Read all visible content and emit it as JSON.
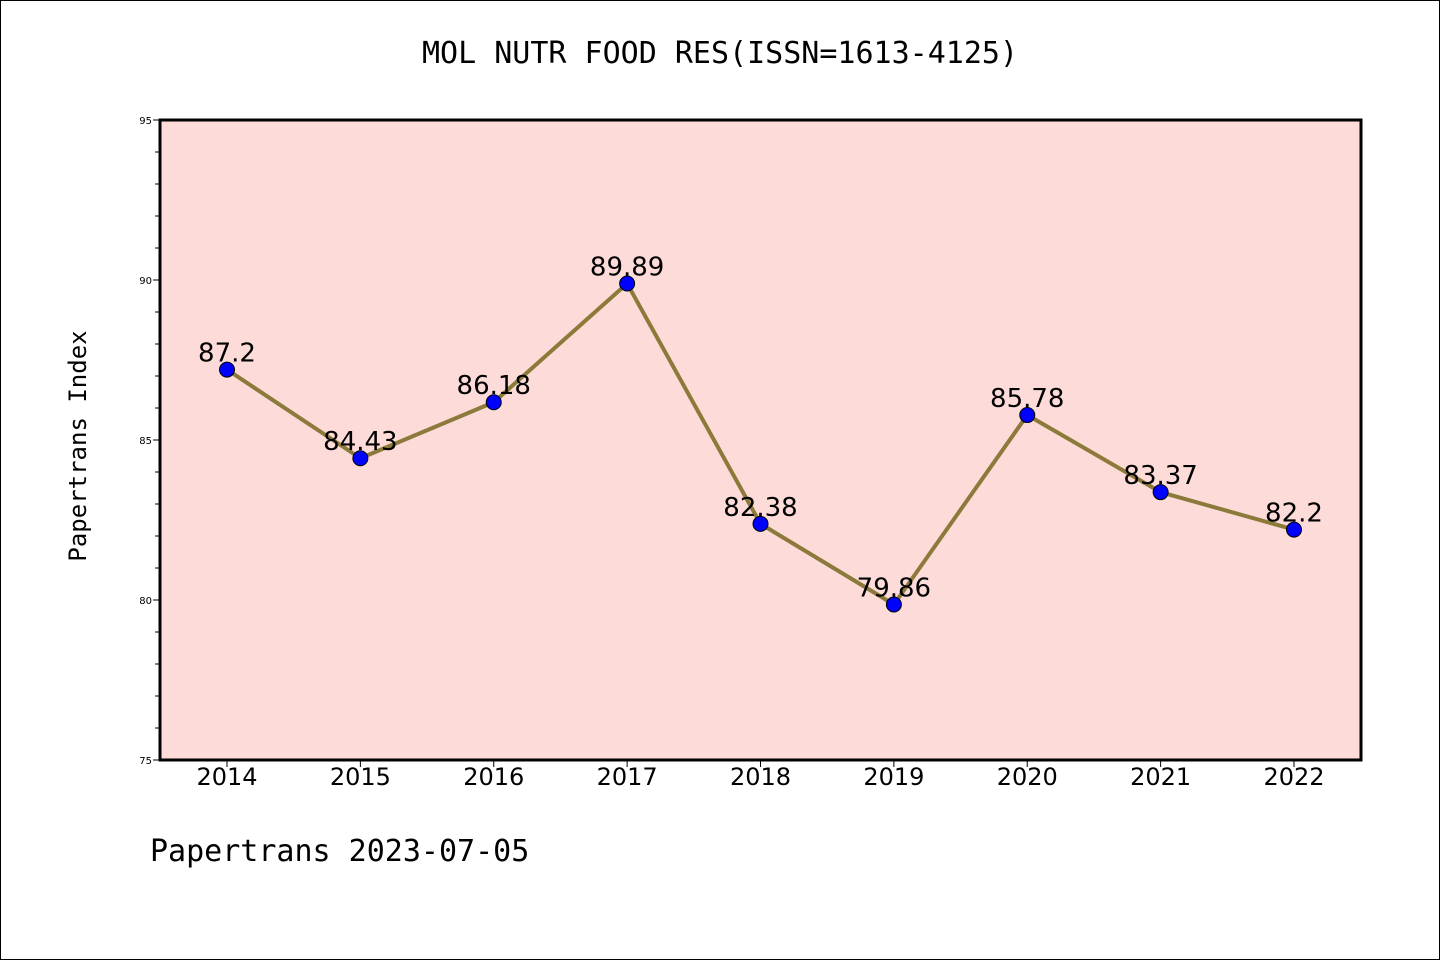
{
  "chart_data": {
    "type": "line",
    "title": "MOL NUTR FOOD RES(ISSN=1613-4125)",
    "ylabel": "Papertrans Index",
    "xlabel": "",
    "categories": [
      "2014",
      "2015",
      "2016",
      "2017",
      "2018",
      "2019",
      "2020",
      "2021",
      "2022"
    ],
    "series": [
      {
        "values": [
          87.2,
          84.43,
          86.18,
          89.89,
          82.38,
          79.86,
          85.78,
          83.37,
          82.2
        ]
      }
    ],
    "data_labels": [
      "87.2",
      "84.43",
      "86.18",
      "89.89",
      "82.38",
      "79.86",
      "85.78",
      "83.37",
      "82.2"
    ],
    "ylim": [
      75,
      95
    ],
    "yticks": [
      75,
      80,
      85,
      90,
      95
    ],
    "grid": false,
    "background_color": "#fddbd9",
    "line_color": "#8b7a3a",
    "marker_color": "#0000ff"
  },
  "footer": "Papertrans 2023-07-05"
}
